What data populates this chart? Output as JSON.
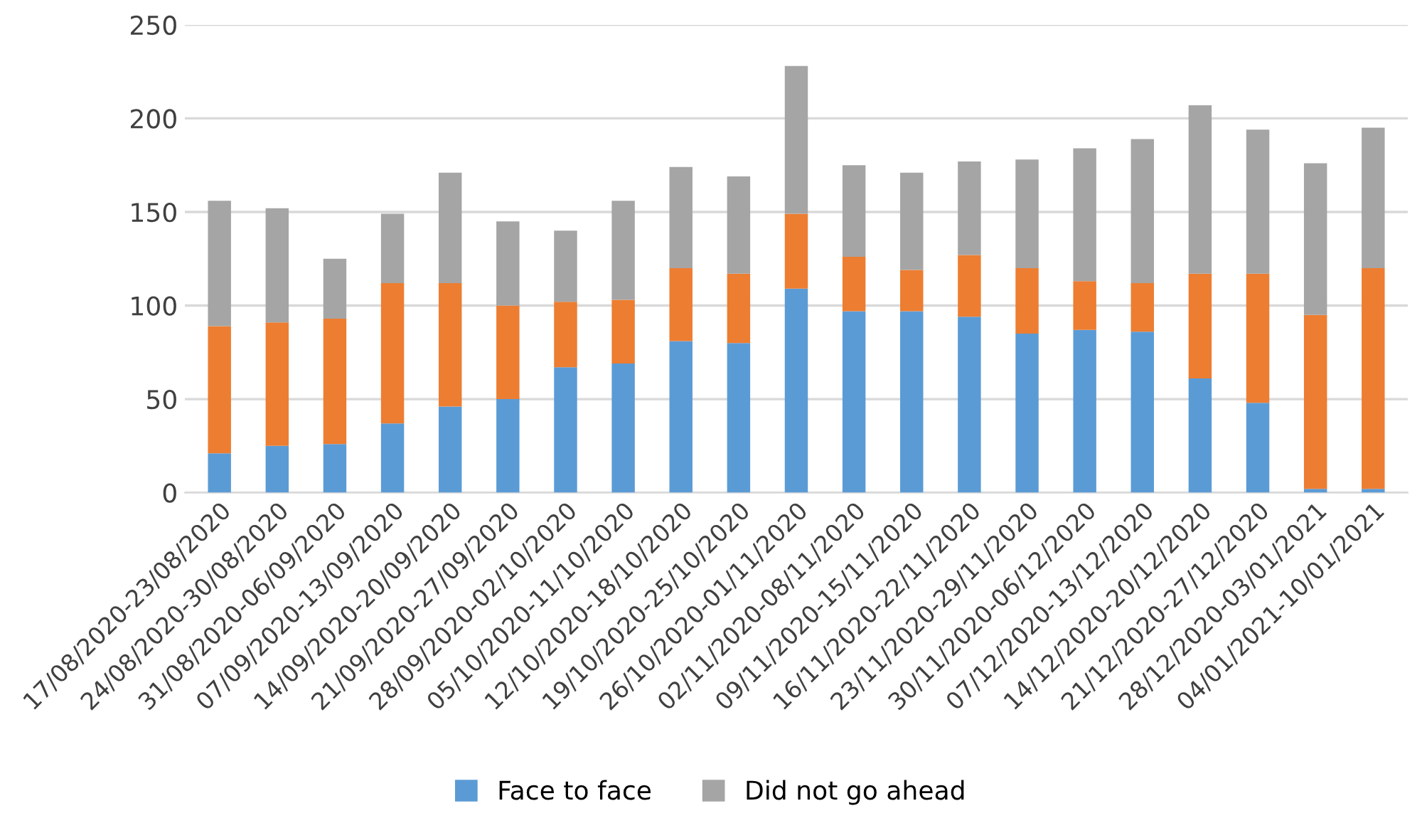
{
  "chart_data": {
    "type": "bar",
    "stacked": true,
    "categories": [
      "17/08/2020-23/08/2020",
      "24/08/2020-30/08/2020",
      "31/08/2020-06/09/2020",
      "07/09/2020-13/09/2020",
      "14/09/2020-20/09/2020",
      "21/09/2020-27/09/2020",
      "28/09/2020-02/10/2020",
      "05/10/2020-11/10/2020",
      "12/10/2020-18/10/2020",
      "19/10/2020-25/10/2020",
      "26/10/2020-01/11/2020",
      "02/11/2020-08/11/2020",
      "09/11/2020-15/11/2020",
      "16/11/2020-22/11/2020",
      "23/11/2020-29/11/2020",
      "30/11/2020-06/12/2020",
      "07/12/2020-13/12/2020",
      "14/12/2020-20/12/2020",
      "21/12/2020-27/12/2020",
      "28/12/2020-03/01/2021",
      "04/01/2021-10/01/2021"
    ],
    "series": [
      {
        "name": "Face to face",
        "color": "#5b9bd5",
        "values": [
          21,
          25,
          26,
          37,
          46,
          50,
          67,
          69,
          81,
          80,
          109,
          97,
          97,
          94,
          85,
          87,
          86,
          61,
          48,
          2,
          2
        ]
      },
      {
        "color": "#ed7d31",
        "values": [
          68,
          66,
          67,
          75,
          66,
          50,
          35,
          34,
          39,
          37,
          40,
          29,
          22,
          33,
          35,
          26,
          26,
          56,
          69,
          93,
          118
        ]
      },
      {
        "name": "Did not go ahead",
        "color": "#a5a5a5",
        "values": [
          67,
          61,
          32,
          37,
          59,
          45,
          38,
          53,
          54,
          52,
          79,
          49,
          52,
          50,
          58,
          71,
          77,
          90,
          77,
          81,
          75
        ]
      }
    ],
    "ylim": [
      0,
      250
    ],
    "yticks": [
      0,
      50,
      100,
      150,
      200,
      250
    ],
    "grid": "y",
    "legend": "bottom"
  }
}
